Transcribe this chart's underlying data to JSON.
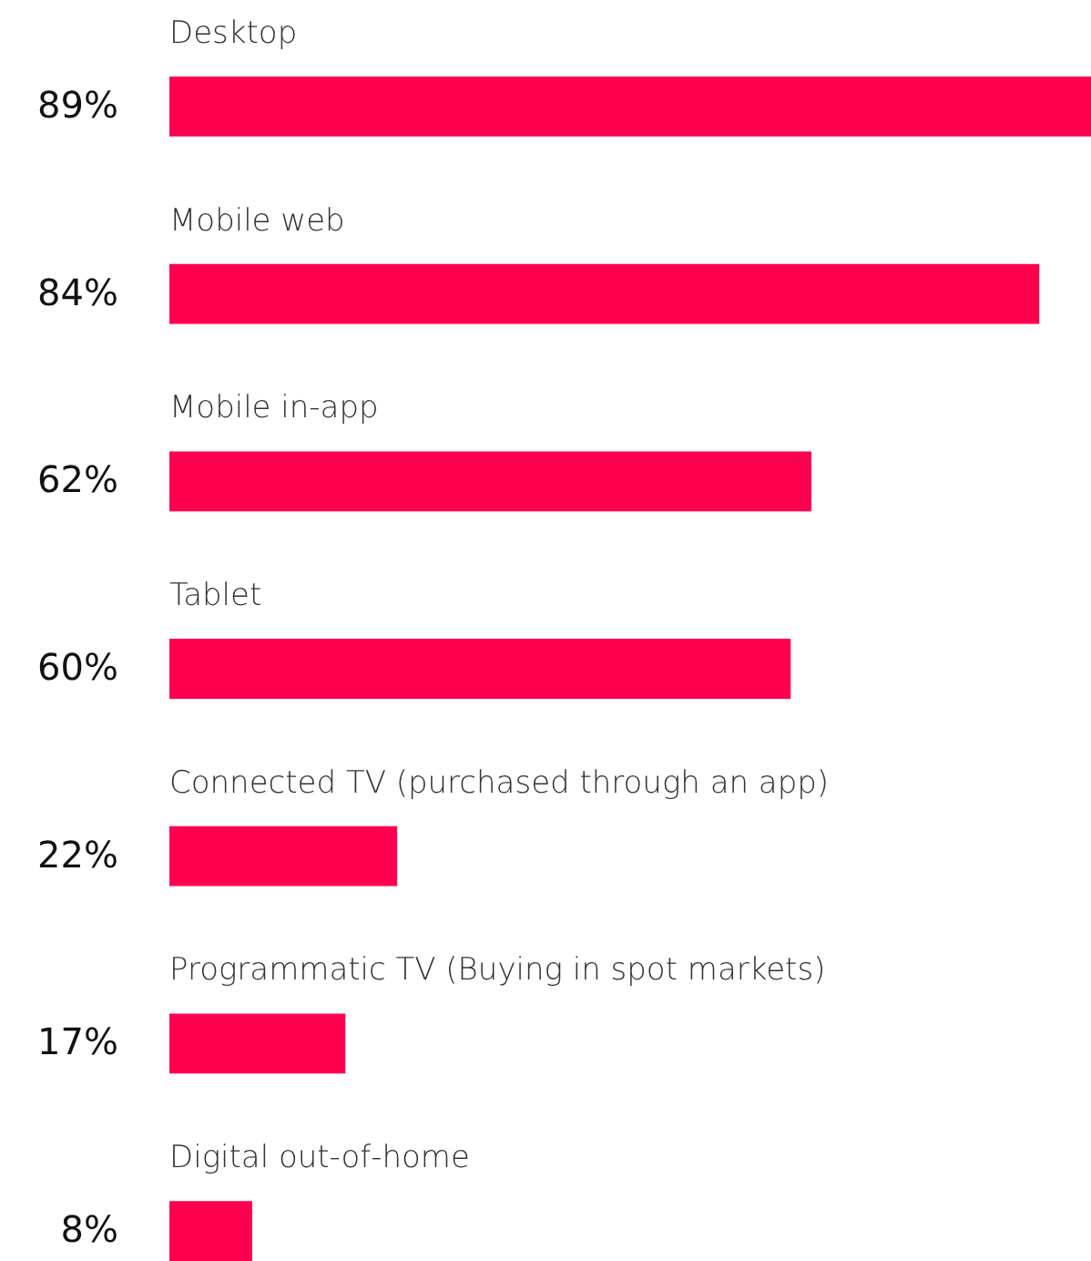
{
  "chart_data": {
    "type": "bar",
    "orientation": "horizontal",
    "categories": [
      "Desktop",
      "Mobile web",
      "Mobile in-app",
      "Tablet",
      "Connected TV (purchased through an app)",
      "Programmatic TV (Buying in spot markets)",
      "Digital out-of-home"
    ],
    "values": [
      89,
      84,
      62,
      60,
      22,
      17,
      8
    ],
    "value_labels": [
      "89%",
      "84%",
      "62%",
      "60%",
      "22%",
      "17%",
      "8%"
    ],
    "color": "#ff0050"
  }
}
